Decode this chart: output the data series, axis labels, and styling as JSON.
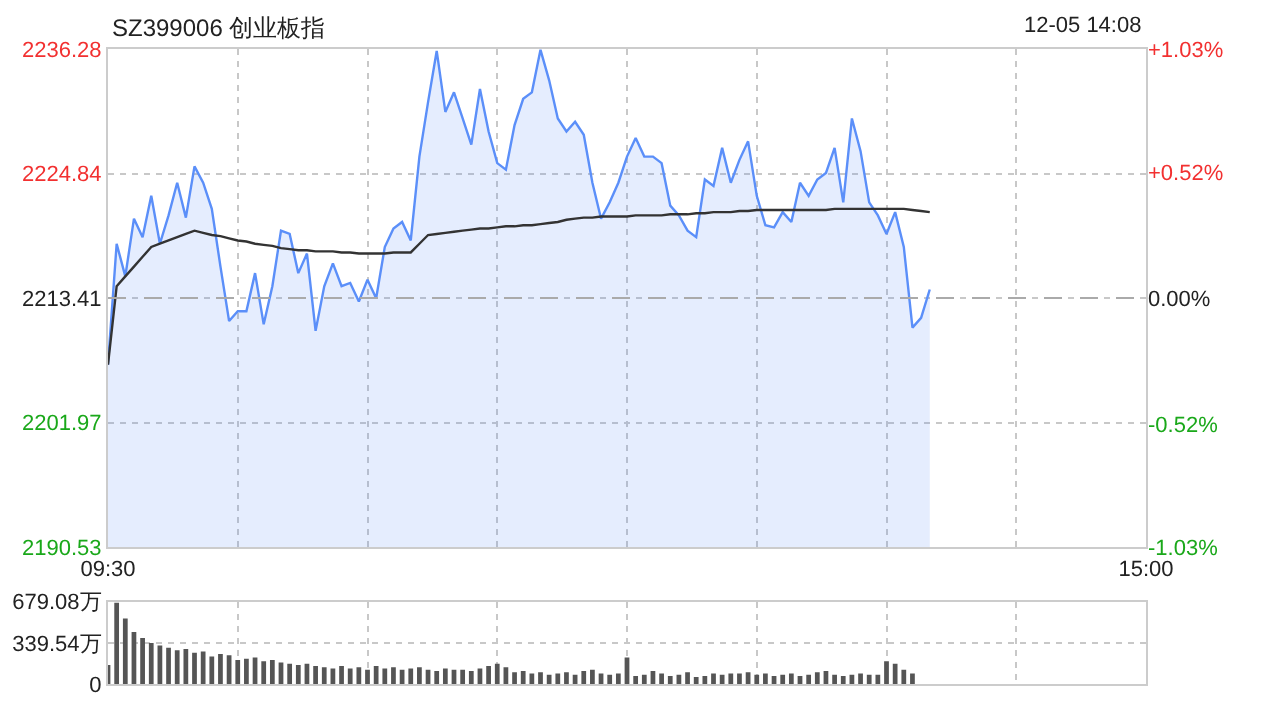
{
  "chart_data": [
    {
      "type": "area",
      "title": "SZ399006 创业板指",
      "annotations": [
        "12-05 14:08"
      ],
      "categories": [
        "09:30",
        null,
        null,
        null,
        null,
        null,
        null,
        null,
        null,
        null,
        null,
        null,
        null,
        null,
        null,
        null,
        null,
        null,
        null,
        null,
        null,
        null,
        null,
        null,
        null,
        null,
        null,
        null,
        null,
        null,
        null,
        null,
        null,
        null,
        null,
        null,
        null,
        null,
        null,
        null,
        null,
        null,
        null,
        null,
        null,
        null,
        null,
        null,
        null,
        null,
        null,
        null,
        null,
        null,
        null,
        null,
        null,
        null,
        null,
        null,
        null,
        null,
        null,
        null,
        null,
        null,
        null,
        null,
        null,
        null,
        null,
        null,
        null,
        null,
        null,
        null,
        null,
        null,
        null,
        null,
        null,
        null,
        null,
        null,
        null,
        null,
        null,
        null,
        null,
        null,
        null,
        null,
        null,
        null,
        null,
        null,
        null,
        null,
        null,
        null,
        null,
        null,
        null,
        null,
        null,
        null,
        null,
        null,
        null,
        null,
        null,
        null,
        null,
        null,
        null,
        null,
        null,
        null,
        null,
        null,
        "15:00"
      ],
      "series": [
        {
          "type": "area",
          "color": "#5b8ff9",
          "values": [
            2207.3,
            2218.4,
            2215.4,
            2220.7,
            2219.0,
            2222.8,
            2218.4,
            2221.0,
            2224.0,
            2220.8,
            2225.5,
            2224.0,
            2221.6,
            2216.3,
            2211.3,
            2212.2,
            2212.2,
            2215.7,
            2211.0,
            2214.5,
            2219.6,
            2219.3,
            2215.7,
            2217.5,
            2210.4,
            2214.5,
            2216.6,
            2214.5,
            2214.8,
            2213.1,
            2215.1,
            2213.4,
            2218.1,
            2219.8,
            2220.4,
            2218.7,
            2226.4,
            2231.4,
            2236.1,
            2230.5,
            2232.3,
            2229.9,
            2227.5,
            2232.6,
            2228.7,
            2225.8,
            2225.2,
            2229.3,
            2231.7,
            2232.3,
            2236.2,
            2233.4,
            2229.9,
            2228.7,
            2229.6,
            2228.4,
            2224.0,
            2220.7,
            2222.2,
            2224.0,
            2226.4,
            2228.1,
            2226.4,
            2226.4,
            2225.8,
            2221.9,
            2221.0,
            2219.6,
            2219.0,
            2224.3,
            2223.7,
            2227.2,
            2224.0,
            2226.1,
            2227.8,
            2222.8,
            2220.1,
            2219.9,
            2221.3,
            2220.4,
            2224.0,
            2222.8,
            2224.3,
            2224.9,
            2227.2,
            2222.2,
            2229.9,
            2226.9,
            2222.2,
            2221.0,
            2219.3,
            2221.3,
            2218.1,
            2210.7,
            2211.6,
            2214.2,
            null,
            null,
            null,
            null,
            null,
            null,
            null,
            null,
            null,
            null,
            null,
            null,
            null,
            null,
            null,
            null,
            null,
            null,
            null,
            null,
            null,
            null,
            null,
            null,
            null
          ]
        },
        {
          "type": "line",
          "color": "#333333",
          "values": [
            2207.3,
            2214.5,
            2215.4,
            2216.3,
            2217.2,
            2218.1,
            2218.4,
            2218.7,
            2219.0,
            2219.3,
            2219.6,
            2219.4,
            2219.2,
            2219.1,
            2218.9,
            2218.7,
            2218.6,
            2218.4,
            2218.3,
            2218.2,
            2218.0,
            2217.9,
            2217.8,
            2217.8,
            2217.7,
            2217.7,
            2217.7,
            2217.6,
            2217.6,
            2217.5,
            2217.5,
            2217.5,
            2217.5,
            2217.6,
            2217.6,
            2217.6,
            2218.4,
            2219.2,
            2219.3,
            2219.4,
            2219.5,
            2219.6,
            2219.7,
            2219.8,
            2219.8,
            2219.9,
            2220.0,
            2220.0,
            2220.1,
            2220.1,
            2220.2,
            2220.3,
            2220.4,
            2220.6,
            2220.7,
            2220.8,
            2220.8,
            2220.9,
            2220.9,
            2220.9,
            2220.9,
            2221.0,
            2221.0,
            2221.0,
            2221.0,
            2221.1,
            2221.1,
            2221.1,
            2221.2,
            2221.2,
            2221.3,
            2221.3,
            2221.3,
            2221.4,
            2221.4,
            2221.5,
            2221.5,
            2221.5,
            2221.5,
            2221.5,
            2221.5,
            2221.5,
            2221.5,
            2221.5,
            2221.6,
            2221.6,
            2221.6,
            2221.6,
            2221.6,
            2221.6,
            2221.6,
            2221.6,
            2221.6,
            2221.5,
            2221.4,
            2221.3,
            null,
            null,
            null,
            null,
            null,
            null,
            null,
            null,
            null,
            null,
            null,
            null,
            null,
            null,
            null,
            null,
            null,
            null,
            null,
            null,
            null,
            null,
            null,
            null,
            null
          ]
        }
      ],
      "ylim": [
        2190.53,
        2236.28
      ],
      "yticks": [
        2190.53,
        2201.97,
        2213.41,
        2224.84,
        2236.28
      ],
      "y2lim": [
        -1.03,
        1.03
      ],
      "y2ticks": [
        {
          "value": -1.03,
          "label": "-1.03%"
        },
        {
          "value": -0.52,
          "label": "-0.52%"
        },
        {
          "value": 0,
          "label": "0.00%"
        },
        {
          "value": 0.52,
          "label": "+0.52%"
        },
        {
          "value": 1.03,
          "label": "+1.03%"
        }
      ],
      "ref_lines": [
        {
          "axis": "y",
          "value": 2213.41,
          "color": "#aaaaaa",
          "line_style": "dashed"
        }
      ],
      "grid": true,
      "marker": "none",
      "line_style": "solid"
    },
    {
      "type": "bar",
      "color": "#555555",
      "categories": [
        null,
        null,
        null,
        null,
        null,
        null,
        null,
        null,
        null,
        null,
        null,
        null,
        null,
        null,
        null,
        null,
        null,
        null,
        null,
        null,
        null,
        null,
        null,
        null,
        null,
        null,
        null,
        null,
        null,
        null,
        null,
        null,
        null,
        null,
        null,
        null,
        null,
        null,
        null,
        null,
        null,
        null,
        null,
        null,
        null,
        null,
        null,
        null,
        null,
        null,
        null,
        null,
        null,
        null,
        null,
        null,
        null,
        null,
        null,
        null,
        null,
        null,
        null,
        null,
        null,
        null,
        null,
        null,
        null,
        null,
        null,
        null,
        null,
        null,
        null,
        null,
        null,
        null,
        null,
        null,
        null,
        null,
        null,
        null,
        null,
        null,
        null,
        null,
        null,
        null,
        null,
        null,
        null,
        null,
        null,
        null,
        null,
        null,
        null,
        null,
        null,
        null,
        null,
        null,
        null,
        null,
        null,
        null,
        null,
        null,
        null,
        null,
        null,
        null,
        null,
        null,
        null,
        null,
        null,
        null,
        null
      ],
      "values": [
        160,
        670,
        540,
        430,
        380,
        340,
        320,
        300,
        280,
        290,
        260,
        270,
        230,
        250,
        240,
        200,
        210,
        220,
        190,
        200,
        180,
        170,
        160,
        170,
        150,
        140,
        130,
        150,
        130,
        140,
        120,
        150,
        130,
        140,
        120,
        130,
        140,
        120,
        110,
        130,
        120,
        120,
        110,
        130,
        150,
        170,
        140,
        100,
        110,
        90,
        100,
        80,
        90,
        100,
        80,
        110,
        120,
        90,
        80,
        90,
        220,
        70,
        80,
        110,
        90,
        70,
        80,
        100,
        60,
        70,
        90,
        80,
        90,
        90,
        100,
        80,
        90,
        70,
        80,
        90,
        70,
        80,
        100,
        110,
        80,
        70,
        80,
        90,
        80,
        80,
        190,
        170,
        120,
        90,
        null,
        null,
        null,
        null,
        null,
        null,
        null,
        null,
        null,
        null,
        null,
        null,
        null,
        null,
        null,
        null,
        null,
        null,
        null,
        null,
        null,
        null,
        null,
        null,
        null,
        null,
        null
      ],
      "ylim": [
        0,
        679.08
      ],
      "yticks": [
        0,
        {
          "value": 339.54,
          "label": "339.54万"
        },
        {
          "value": 679.08,
          "label": "679.08万"
        }
      ],
      "tick_labels": "y",
      "grid": true
    }
  ]
}
